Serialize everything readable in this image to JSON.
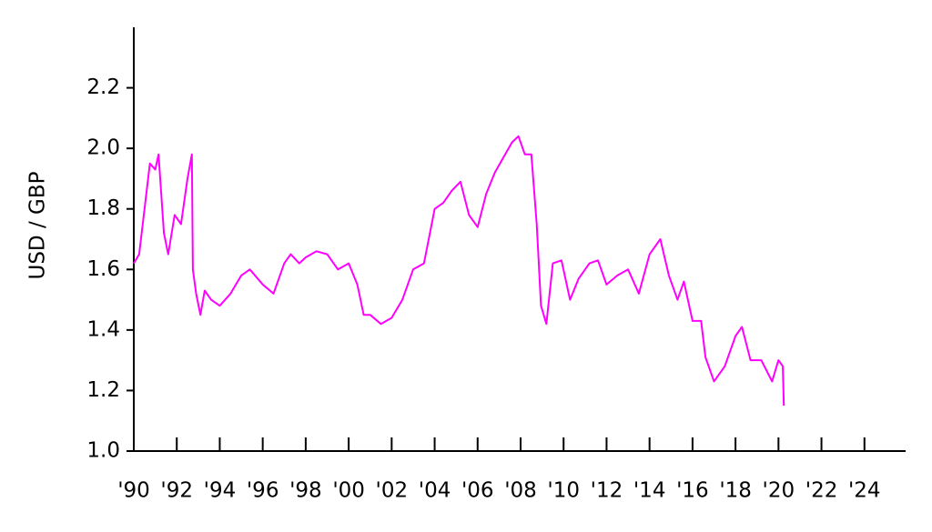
{
  "chart_data": {
    "type": "line",
    "y_label": "USD / GBP",
    "x": [
      1990.0,
      1990.25,
      1990.5,
      1990.75,
      1991.0,
      1991.15,
      1991.4,
      1991.6,
      1991.9,
      1992.2,
      1992.5,
      1992.7,
      1992.75,
      1992.9,
      1993.1,
      1993.3,
      1993.6,
      1994.0,
      1994.5,
      1995.0,
      1995.4,
      1996.0,
      1996.5,
      1997.0,
      1997.3,
      1997.7,
      1998.0,
      1998.5,
      1999.0,
      1999.5,
      2000.0,
      2000.4,
      2000.7,
      2001.0,
      2001.5,
      2002.0,
      2002.5,
      2003.0,
      2003.5,
      2004.0,
      2004.4,
      2004.8,
      2005.2,
      2005.6,
      2006.0,
      2006.4,
      2006.8,
      2007.2,
      2007.6,
      2007.9,
      2008.2,
      2008.5,
      2008.75,
      2008.95,
      2009.2,
      2009.5,
      2009.9,
      2010.3,
      2010.7,
      2011.2,
      2011.6,
      2012.0,
      2012.5,
      2013.0,
      2013.5,
      2014.0,
      2014.5,
      2014.9,
      2015.3,
      2015.6,
      2016.0,
      2016.4,
      2016.6,
      2017.0,
      2017.5,
      2018.0,
      2018.3,
      2018.7,
      2019.2,
      2019.7,
      2020.0,
      2020.2,
      2020.25
    ],
    "series": [
      {
        "color": "#ff00ff",
        "values": [
          1.62,
          1.65,
          1.8,
          1.95,
          1.93,
          1.98,
          1.72,
          1.65,
          1.78,
          1.75,
          1.9,
          1.98,
          1.6,
          1.52,
          1.45,
          1.53,
          1.5,
          1.48,
          1.52,
          1.58,
          1.6,
          1.55,
          1.52,
          1.62,
          1.65,
          1.62,
          1.64,
          1.66,
          1.65,
          1.6,
          1.62,
          1.55,
          1.45,
          1.45,
          1.42,
          1.44,
          1.5,
          1.6,
          1.62,
          1.8,
          1.82,
          1.86,
          1.89,
          1.78,
          1.74,
          1.85,
          1.92,
          1.97,
          2.02,
          2.04,
          1.98,
          1.98,
          1.75,
          1.48,
          1.42,
          1.62,
          1.63,
          1.5,
          1.57,
          1.62,
          1.63,
          1.55,
          1.58,
          1.6,
          1.52,
          1.65,
          1.7,
          1.58,
          1.5,
          1.56,
          1.43,
          1.43,
          1.31,
          1.23,
          1.28,
          1.38,
          1.41,
          1.3,
          1.3,
          1.23,
          1.3,
          1.28,
          1.15
        ]
      }
    ],
    "xlim": [
      1990,
      2026
    ],
    "xticks": [
      {
        "value": 1990,
        "label": "'90"
      },
      {
        "value": 1992,
        "label": "'92"
      },
      {
        "value": 1994,
        "label": "'94"
      },
      {
        "value": 1996,
        "label": "'96"
      },
      {
        "value": 1998,
        "label": "'98"
      },
      {
        "value": 2000,
        "label": "'00"
      },
      {
        "value": 2002,
        "label": "'02"
      },
      {
        "value": 2004,
        "label": "'04"
      },
      {
        "value": 2006,
        "label": "'06"
      },
      {
        "value": 2008,
        "label": "'08"
      },
      {
        "value": 2010,
        "label": "'10"
      },
      {
        "value": 2012,
        "label": "'12"
      },
      {
        "value": 2014,
        "label": "'14"
      },
      {
        "value": 2016,
        "label": "'16"
      },
      {
        "value": 2018,
        "label": "'18"
      },
      {
        "value": 2020,
        "label": "'20"
      },
      {
        "value": 2022,
        "label": "'22"
      },
      {
        "value": 2024,
        "label": "'24"
      }
    ],
    "ylim": [
      1.0,
      2.4
    ],
    "yticks": [
      {
        "value": 1.0,
        "label": "1.0"
      },
      1.2,
      1.4,
      1.6,
      1.8,
      {
        "value": 2.0,
        "label": "2.0"
      },
      2.2
    ]
  }
}
